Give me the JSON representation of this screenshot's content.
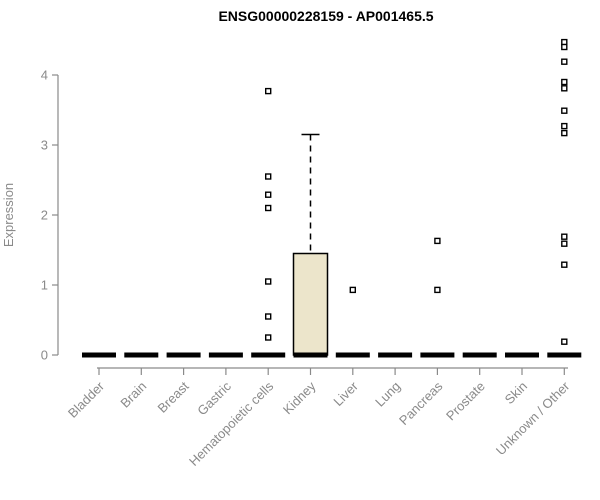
{
  "chart_data": {
    "type": "boxplot",
    "title": "ENSG00000228159 - AP001465.5",
    "ylabel": "Expression",
    "xlabel": "",
    "yticks": [
      0,
      1,
      2,
      3,
      4
    ],
    "ylim": [
      0,
      4.6
    ],
    "grid": false,
    "legend": "none",
    "categories": [
      "Bladder",
      "Brain",
      "Breast",
      "Gastric",
      "Hematopoietic cells",
      "Kidney",
      "Liver",
      "Lung",
      "Pancreas",
      "Prostate",
      "Skin",
      "Unknown / Other"
    ],
    "groups": [
      {
        "category": "Bladder",
        "q1": 0,
        "median": 0,
        "q3": 0,
        "whisker_low": 0,
        "whisker_high": 0,
        "outliers": []
      },
      {
        "category": "Brain",
        "q1": 0,
        "median": 0,
        "q3": 0,
        "whisker_low": 0,
        "whisker_high": 0,
        "outliers": []
      },
      {
        "category": "Breast",
        "q1": 0,
        "median": 0,
        "q3": 0,
        "whisker_low": 0,
        "whisker_high": 0,
        "outliers": []
      },
      {
        "category": "Gastric",
        "q1": 0,
        "median": 0,
        "q3": 0,
        "whisker_low": 0,
        "whisker_high": 0,
        "outliers": []
      },
      {
        "category": "Hematopoietic cells",
        "q1": 0,
        "median": 0,
        "q3": 0,
        "whisker_low": 0,
        "whisker_high": 0,
        "outliers": [
          3.77,
          2.55,
          2.29,
          2.1,
          1.05,
          0.55,
          0.25
        ]
      },
      {
        "category": "Kidney",
        "q1": 0,
        "median": 0,
        "q3": 1.45,
        "whisker_low": 0,
        "whisker_high": 3.15,
        "outliers": []
      },
      {
        "category": "Liver",
        "q1": 0,
        "median": 0,
        "q3": 0,
        "whisker_low": 0,
        "whisker_high": 0,
        "outliers": [
          0.93
        ]
      },
      {
        "category": "Lung",
        "q1": 0,
        "median": 0,
        "q3": 0,
        "whisker_low": 0,
        "whisker_high": 0,
        "outliers": []
      },
      {
        "category": "Pancreas",
        "q1": 0,
        "median": 0,
        "q3": 0,
        "whisker_low": 0,
        "whisker_high": 0,
        "outliers": [
          1.63,
          0.93
        ]
      },
      {
        "category": "Prostate",
        "q1": 0,
        "median": 0,
        "q3": 0,
        "whisker_low": 0,
        "whisker_high": 0,
        "outliers": []
      },
      {
        "category": "Skin",
        "q1": 0,
        "median": 0,
        "q3": 0,
        "whisker_low": 0,
        "whisker_high": 0,
        "outliers": []
      },
      {
        "category": "Unknown / Other",
        "q1": 0,
        "median": 0,
        "q3": 0,
        "whisker_low": 0,
        "whisker_high": 0,
        "outliers": [
          4.47,
          4.4,
          4.19,
          3.9,
          3.81,
          3.49,
          3.27,
          3.17,
          1.69,
          1.59,
          1.29,
          0.19
        ]
      }
    ],
    "style": {
      "background": "#ffffff",
      "box_fill": "#ece5cb",
      "box_stroke": "#000000",
      "median_color": "#000000",
      "whisker_color": "#000000",
      "outlier_color": "#000000",
      "outlier_shape": "open-square",
      "axis_color": "#8a8a8a",
      "tick_label_color": "#8a8a8a",
      "title_color": "#000000"
    }
  }
}
